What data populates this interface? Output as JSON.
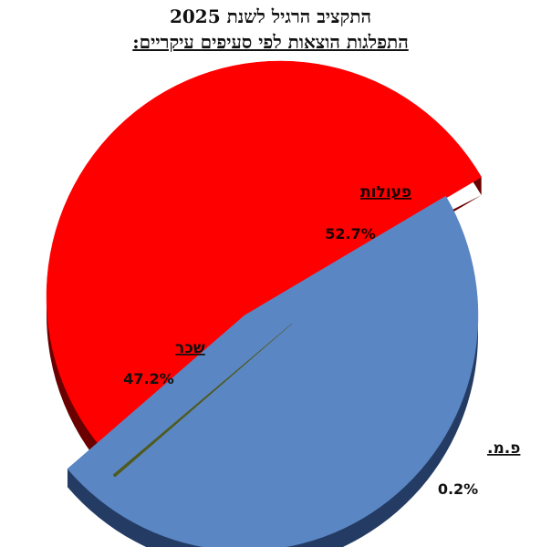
{
  "chart_data": {
    "type": "pie",
    "title": "התקציב הרגיל לשנת 2025",
    "subtitle": "התפלגות הוצאות לפי סעיפים עיקריים:",
    "slices": [
      {
        "label": "פעולות",
        "value": 52.7,
        "value_label": "52.7%",
        "color": "#ff0000",
        "side_color": "#6b0000"
      },
      {
        "label": "שכר",
        "value": 47.2,
        "value_label": "47.2%",
        "color": "#5b86c4",
        "side_color": "#243b63"
      },
      {
        "label": "פ.מ.",
        "value": 0.2,
        "value_label": "0.2%",
        "color": "#4f5a1c",
        "side_color": "#3a4314"
      }
    ],
    "exploded": true,
    "three_d": true
  }
}
